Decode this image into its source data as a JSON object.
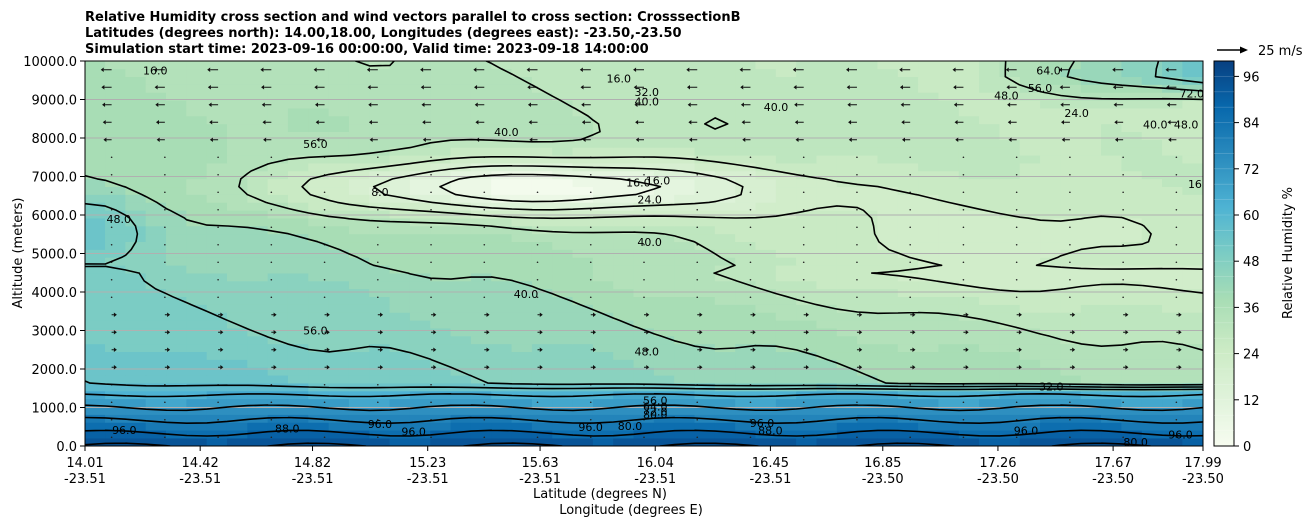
{
  "chart_data": {
    "type": "contour",
    "title_lines": [
      "Relative Humidity cross section and wind vectors parallel to cross section: CrosssectionB",
      "Latitudes (degrees north): 14.00,18.00, Longitudes (degrees east): -23.50,-23.50",
      "Simulation start time: 2023-09-16 00:00:00, Valid time: 2023-09-18 14:00:00"
    ],
    "xlabel_lat": "Latitude (degrees N)",
    "xlabel_lon": "Longitude (degrees E)",
    "ylabel": "Altitude (meters)",
    "x_ticks": [
      {
        "lat": "14.01",
        "lon": "-23.51"
      },
      {
        "lat": "14.42",
        "lon": "-23.51"
      },
      {
        "lat": "14.82",
        "lon": "-23.51"
      },
      {
        "lat": "15.23",
        "lon": "-23.51"
      },
      {
        "lat": "15.63",
        "lon": "-23.51"
      },
      {
        "lat": "16.04",
        "lon": "-23.51"
      },
      {
        "lat": "16.45",
        "lon": "-23.51"
      },
      {
        "lat": "16.85",
        "lon": "-23.50"
      },
      {
        "lat": "17.26",
        "lon": "-23.50"
      },
      {
        "lat": "17.67",
        "lon": "-23.50"
      },
      {
        "lat": "17.99",
        "lon": "-23.50"
      }
    ],
    "xlim": [
      14.01,
      17.99
    ],
    "ylim": [
      0,
      10000
    ],
    "y_ticks": [
      "0.0",
      "1000.0",
      "2000.0",
      "3000.0",
      "4000.0",
      "5000.0",
      "6000.0",
      "7000.0",
      "8000.0",
      "9000.0",
      "10000.0"
    ],
    "grid": "horizontal",
    "colorbar": {
      "label": "Relative Humidity %",
      "ticks": [
        "0",
        "12",
        "24",
        "36",
        "48",
        "60",
        "72",
        "84",
        "96"
      ],
      "range": [
        0,
        100
      ],
      "colormap": "GnBu"
    },
    "quiver_key": {
      "label": "25 m/s"
    },
    "contour_levels": [
      8,
      16,
      24,
      32,
      40,
      48,
      56,
      64,
      72,
      80,
      88,
      96
    ],
    "contour_labels": [
      {
        "text": "16.0",
        "lat": 14.26,
        "alt": 9750
      },
      {
        "text": "16.0",
        "lat": 15.91,
        "alt": 9550
      },
      {
        "text": "32.0",
        "lat": 16.01,
        "alt": 9200
      },
      {
        "text": "40.0",
        "lat": 16.01,
        "alt": 8950
      },
      {
        "text": "40.0",
        "lat": 15.51,
        "alt": 8150
      },
      {
        "text": "56.0",
        "lat": 14.83,
        "alt": 7850
      },
      {
        "text": "8.0",
        "lat": 15.06,
        "alt": 6600
      },
      {
        "text": "16.0",
        "lat": 15.98,
        "alt": 6850
      },
      {
        "text": "16.0",
        "lat": 16.05,
        "alt": 6900
      },
      {
        "text": "24.0",
        "lat": 16.02,
        "alt": 6400
      },
      {
        "text": "48.0",
        "lat": 14.13,
        "alt": 5900
      },
      {
        "text": "40.0",
        "lat": 16.02,
        "alt": 5300
      },
      {
        "text": "40.0",
        "lat": 15.58,
        "alt": 3950
      },
      {
        "text": "56.0",
        "lat": 14.83,
        "alt": 3000
      },
      {
        "text": "48.0",
        "lat": 16.01,
        "alt": 2450
      },
      {
        "text": "32.0",
        "lat": 17.45,
        "alt": 1550
      },
      {
        "text": "56.0",
        "lat": 16.04,
        "alt": 1180
      },
      {
        "text": "64.0",
        "lat": 16.04,
        "alt": 1030
      },
      {
        "text": "72.0",
        "lat": 16.04,
        "alt": 900
      },
      {
        "text": "80.0",
        "lat": 16.04,
        "alt": 820
      },
      {
        "text": "96.0",
        "lat": 14.15,
        "alt": 420
      },
      {
        "text": "96.0",
        "lat": 15.18,
        "alt": 380
      },
      {
        "text": "96.0",
        "lat": 15.06,
        "alt": 570
      },
      {
        "text": "96.0",
        "lat": 15.81,
        "alt": 500
      },
      {
        "text": "80.0",
        "lat": 15.95,
        "alt": 520
      },
      {
        "text": "88.0",
        "lat": 14.73,
        "alt": 450
      },
      {
        "text": "88.0",
        "lat": 16.45,
        "alt": 400
      },
      {
        "text": "96.0",
        "lat": 16.42,
        "alt": 600
      },
      {
        "text": "96.0",
        "lat": 17.36,
        "alt": 400
      },
      {
        "text": "80.0",
        "lat": 17.75,
        "alt": 100
      },
      {
        "text": "96.0",
        "lat": 17.91,
        "alt": 300
      },
      {
        "text": "48.0",
        "lat": 17.29,
        "alt": 9100
      },
      {
        "text": "56.0",
        "lat": 17.41,
        "alt": 9300
      },
      {
        "text": "64.0",
        "lat": 17.44,
        "alt": 9750
      },
      {
        "text": "40.0",
        "lat": 16.47,
        "alt": 8800
      },
      {
        "text": "24.0",
        "lat": 17.54,
        "alt": 8650
      },
      {
        "text": "40.0",
        "lat": 17.82,
        "alt": 8350
      },
      {
        "text": "48.0",
        "lat": 17.93,
        "alt": 8350
      },
      {
        "text": "72.0",
        "lat": 17.95,
        "alt": 9150
      },
      {
        "text": "16.0",
        "lat": 17.98,
        "alt": 6800
      }
    ]
  }
}
